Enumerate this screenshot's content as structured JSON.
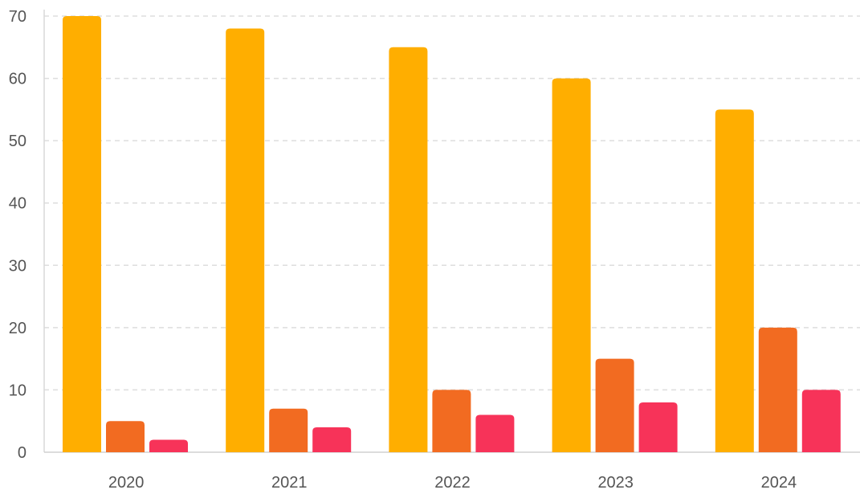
{
  "chart_data": {
    "type": "bar",
    "categories": [
      "2020",
      "2021",
      "2022",
      "2023",
      "2024"
    ],
    "series": [
      {
        "values": [
          70,
          68,
          65,
          60,
          55
        ],
        "color": "#FFAE00"
      },
      {
        "values": [
          5,
          7,
          10,
          15,
          20
        ],
        "color": "#F26B21"
      },
      {
        "values": [
          2,
          4,
          6,
          8,
          10
        ],
        "color": "#F73359"
      }
    ],
    "y_ticks": [
      "0",
      "10",
      "20",
      "30",
      "40",
      "50",
      "60",
      "70"
    ],
    "ylim": [
      0,
      70
    ],
    "grid": true,
    "legend": "none",
    "title": "",
    "xlabel": "",
    "ylabel": ""
  }
}
